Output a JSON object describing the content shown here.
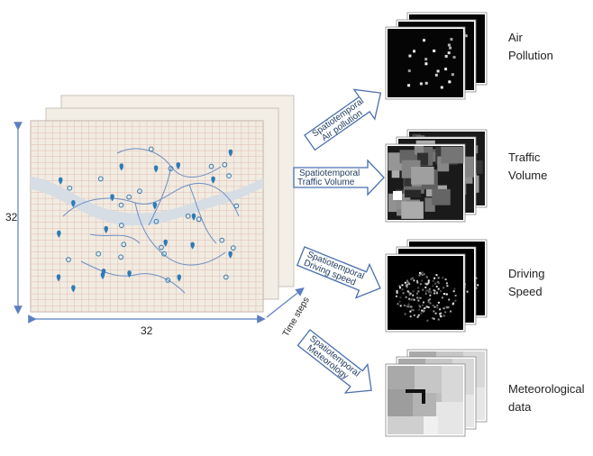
{
  "dimensions": {
    "height_label": "32",
    "width_label": "32"
  },
  "time_label": "Time steps",
  "outputs": [
    {
      "line1": "Air",
      "line2": "Pollution",
      "arrow_line1": "Spatiotemporal",
      "arrow_line2": "Air pollution"
    },
    {
      "line1": "Traffic",
      "line2": "Volume",
      "arrow_line1": "Spatiotemporal",
      "arrow_line2": "Traffic Volume"
    },
    {
      "line1": "Driving",
      "line2": "Speed",
      "arrow_line1": "Spatiotemporal",
      "arrow_line2": "Driving speed"
    },
    {
      "line1": "Meteorological",
      "line2": "data",
      "arrow_line1": "Spatiotemporal",
      "arrow_line2": "Meteorology"
    }
  ],
  "colors": {
    "map_background": "#f1ece2",
    "map_grid": "#e3b9b0",
    "river": "#d6dde5",
    "district_border": "#6b8fc4",
    "marker": "#2e7bb6",
    "dim_arrow": "#5b7fc0",
    "arrow_outline": "#4a6fb0"
  }
}
